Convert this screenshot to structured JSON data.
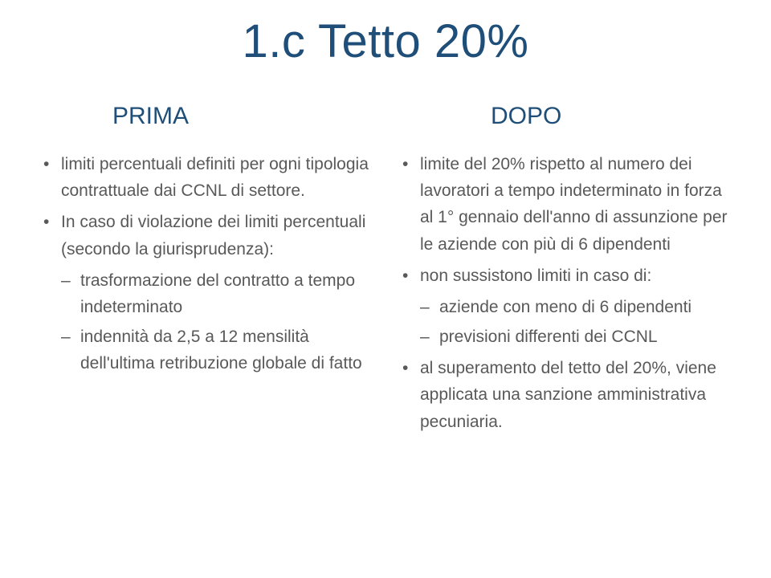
{
  "title": "1.c Tetto 20%",
  "title_color": "#1f4e79",
  "title_fontsize": 58,
  "header_color": "#1f4e79",
  "header_fontsize": 30,
  "body_color": "#595959",
  "body_fontsize": 21,
  "background_color": "#ffffff",
  "left": {
    "header": "PRIMA",
    "b1": "limiti percentuali definiti per ogni tipologia contrattuale dai CCNL di settore.",
    "b2": "In caso di violazione dei limiti percentuali (secondo la giurisprudenza):",
    "b2a": "trasformazione del contratto a tempo indeterminato",
    "b2b": "indennità da 2,5 a 12 mensilità dell'ultima retribuzione globale di fatto"
  },
  "right": {
    "header": "DOPO",
    "b1": "limite del 20% rispetto al numero dei lavoratori a tempo indeterminato in forza al 1° gennaio dell'anno di assunzione per le aziende con più di 6 dipendenti",
    "b2": "non sussistono limiti in caso di:",
    "b2a": "aziende con meno di 6 dipendenti",
    "b2b": "previsioni differenti dei CCNL",
    "b3": "al superamento del tetto del 20%, viene applicata una sanzione amministrativa pecuniaria."
  }
}
